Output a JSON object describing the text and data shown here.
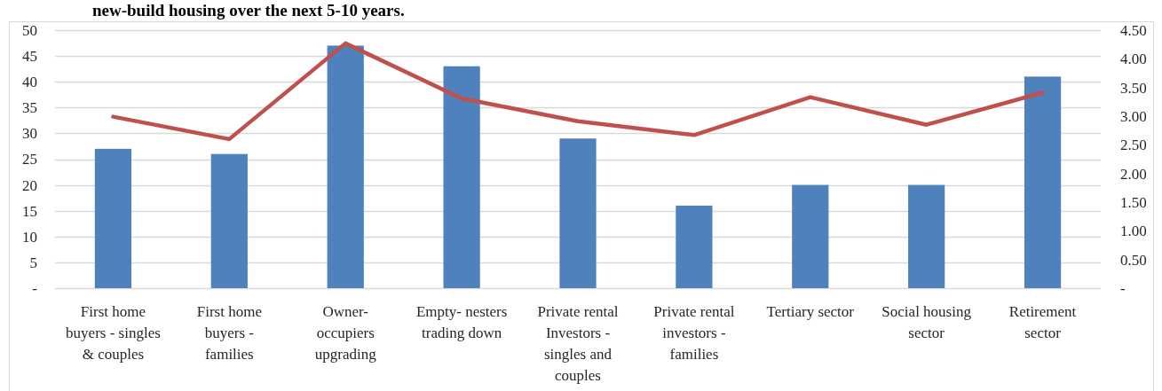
{
  "chart_data": {
    "type": "bar",
    "title": "new-build housing over the next 5-10 years.",
    "categories": [
      "First home buyers - singles & couples",
      "First home buyers - families",
      "Owner-occupiers upgrading",
      "Empty- nesters trading down",
      "Private rental Investors - singles and couples",
      "Private rental investors - families",
      "Tertiary sector",
      "Social housing sector",
      "Retirement sector"
    ],
    "series": [
      {
        "color": "#4f81bd",
        "values": [
          27,
          26,
          47,
          43,
          29,
          16,
          20,
          20,
          41
        ]
      },
      {
        "type": "line",
        "axis": "y2",
        "color": "#c0504d",
        "values": [
          2.99,
          2.6,
          4.27,
          3.31,
          2.91,
          2.67,
          3.33,
          2.85,
          3.41
        ]
      }
    ],
    "ylim": [
      0,
      50
    ],
    "yticks": [
      {
        "value": 0,
        "label": "-"
      },
      5,
      10,
      15,
      20,
      25,
      30,
      35,
      40,
      45,
      50
    ],
    "y2lim": [
      0,
      4.5
    ],
    "y2ticks": [
      {
        "value": 0,
        "label": "-"
      },
      {
        "value": 0.5,
        "label": "0.50"
      },
      {
        "value": 1,
        "label": "1.00"
      },
      {
        "value": 1.5,
        "label": "1.50"
      },
      {
        "value": 2,
        "label": "2.00"
      },
      {
        "value": 2.5,
        "label": "2.50"
      },
      {
        "value": 3,
        "label": "3.00"
      },
      {
        "value": 3.5,
        "label": "3.50"
      },
      {
        "value": 4,
        "label": "4.00"
      },
      {
        "value": 4.5,
        "label": "4.50"
      }
    ],
    "grid": "y"
  }
}
